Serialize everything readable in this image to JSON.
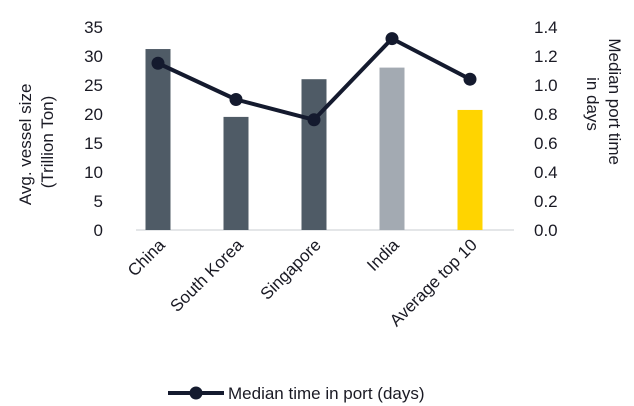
{
  "chart_data": {
    "type": "bar",
    "categories": [
      "China",
      "South Korea",
      "Singapore",
      "India",
      "Average top 10"
    ],
    "series": [
      {
        "type": "bar",
        "axis": "left",
        "values": [
          31.2,
          19.5,
          26.0,
          28.0,
          20.7
        ],
        "colors": [
          "#4f5b66",
          "#4f5b66",
          "#4f5b66",
          "#a3aab2",
          "#ffd400"
        ]
      },
      {
        "type": "line",
        "axis": "right",
        "name": "Median time in port (days)",
        "values": [
          1.15,
          0.9,
          0.76,
          1.32,
          1.04
        ],
        "color": "#141a2e"
      }
    ],
    "ylabel_left": [
      "Avg. vessel size",
      "(Trillion Ton)"
    ],
    "ylabel_right": [
      "Median port time",
      "in days"
    ],
    "ylim_left": [
      0,
      35
    ],
    "yticks_left": [
      "0",
      "5",
      "10",
      "15",
      "20",
      "25",
      "30",
      "35"
    ],
    "ylim_right": [
      0,
      1.4
    ],
    "yticks_right": [
      "0.0",
      "0.2",
      "0.4",
      "0.6",
      "0.8",
      "1.0",
      "1.2",
      "1.4"
    ],
    "grid": false,
    "legend": {
      "position": "bottom",
      "entries": [
        "Median time in port (days)"
      ]
    }
  }
}
